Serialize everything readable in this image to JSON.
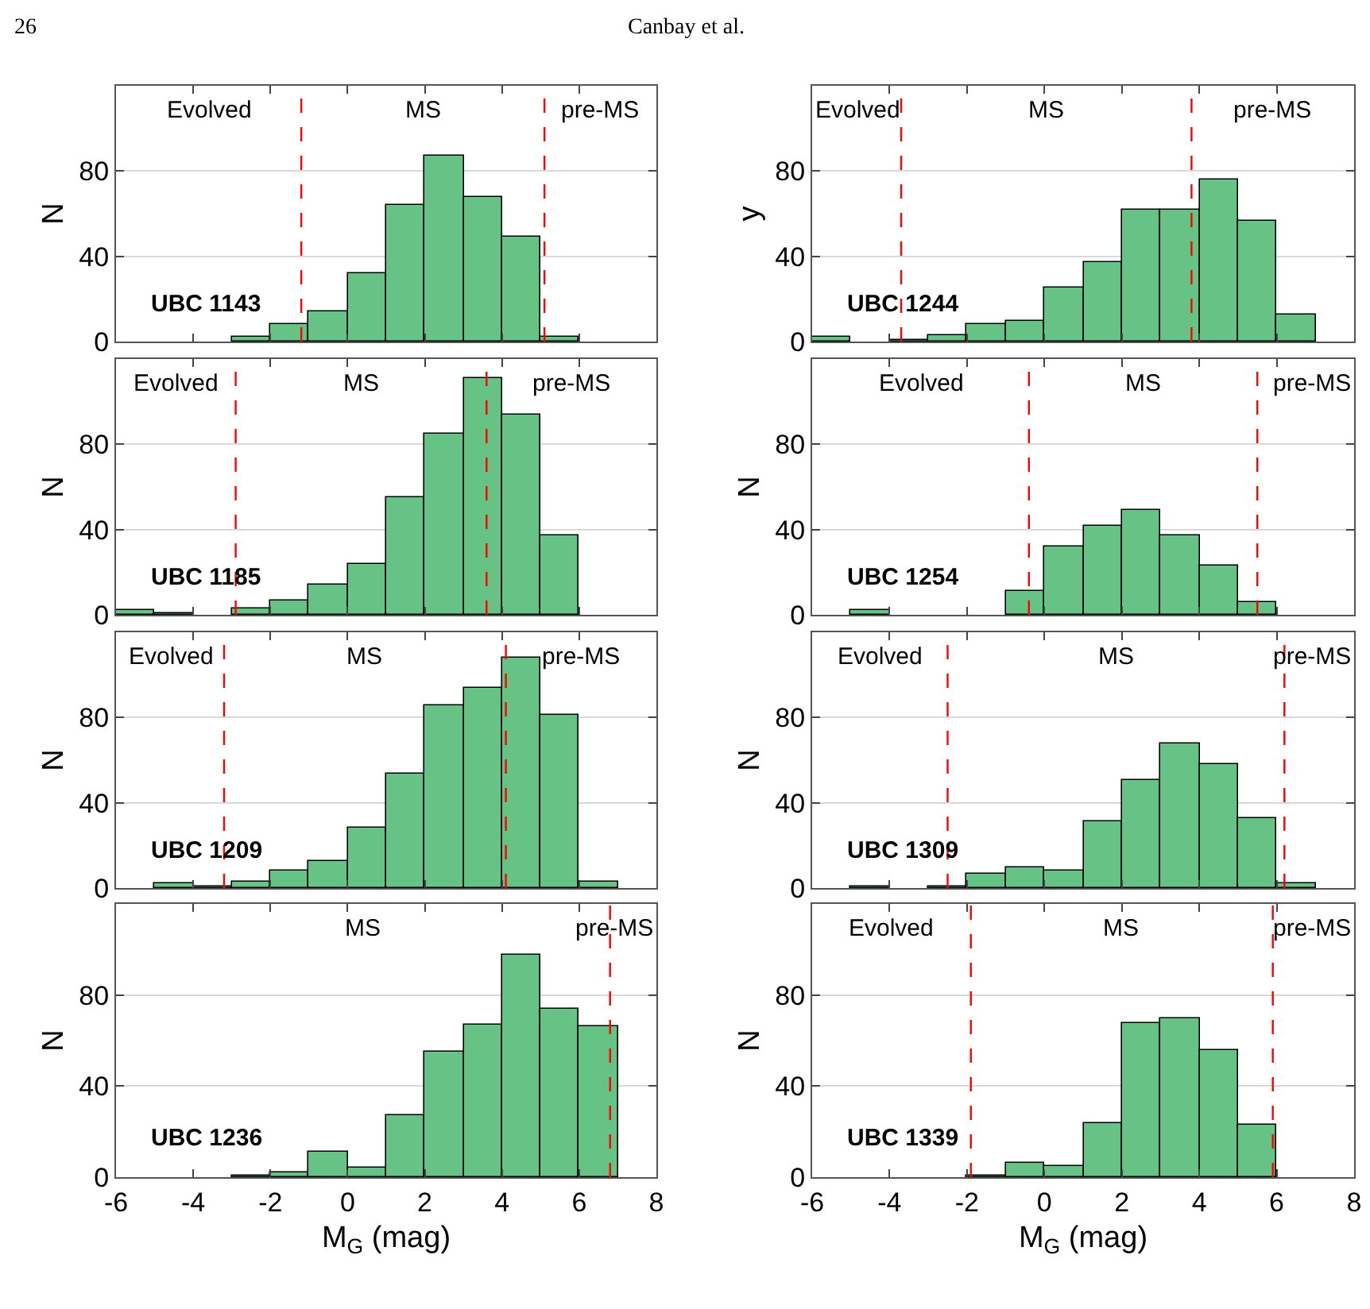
{
  "chart_data": [
    {
      "type": "histogram",
      "title": "UBC 1143",
      "ylabel": "N",
      "bins": [
        -6,
        -5,
        -4,
        -3,
        -2,
        -1,
        0,
        1,
        2,
        3,
        4,
        5,
        6,
        7,
        8
      ],
      "values": [
        0,
        0,
        0,
        2,
        8,
        14,
        32,
        64,
        87,
        68,
        49,
        2,
        0,
        0
      ],
      "color": "#66c285",
      "xlim": [
        -6,
        8
      ],
      "xticks": [
        -6,
        -4,
        -2,
        0,
        2,
        4,
        6,
        8
      ],
      "ylim": [
        0,
        120
      ],
      "yticks": [
        0,
        40,
        80
      ],
      "grid": "y",
      "tick_labels": "y",
      "ref_lines": [
        {
          "axis": "x",
          "value": -1.2,
          "color": "#ff0000",
          "line_style": "dashed"
        },
        {
          "axis": "x",
          "value": 5.1,
          "color": "#ff0000",
          "line_style": "dashed"
        }
      ],
      "annotations": [
        "Evolved",
        "MS",
        "pre-MS"
      ]
    },
    {
      "type": "histogram",
      "title": "UBC 1244",
      "ylabel": "y",
      "bins": [
        -6,
        -5,
        -4,
        -3,
        -2,
        -1,
        0,
        1,
        2,
        3,
        4,
        5,
        6,
        7,
        8
      ],
      "values": [
        2,
        0,
        1,
        3,
        8,
        10,
        25,
        37,
        62,
        62,
        76,
        57,
        13,
        0
      ],
      "color": "#66c285",
      "xlim": [
        -6,
        8
      ],
      "xticks": [
        -6,
        -4,
        -2,
        0,
        2,
        4,
        6,
        8
      ],
      "ylim": [
        0,
        120
      ],
      "yticks": [
        0,
        40,
        80
      ],
      "grid": "y",
      "tick_labels": "y",
      "ref_lines": [
        {
          "axis": "x",
          "value": -3.7,
          "color": "#ff0000",
          "line_style": "dashed"
        },
        {
          "axis": "x",
          "value": 3.8,
          "color": "#ff0000",
          "line_style": "dashed"
        }
      ],
      "annotations": [
        "Evolved",
        "MS",
        "pre-MS"
      ]
    },
    {
      "type": "histogram",
      "title": "UBC 1185",
      "ylabel": "N",
      "bins": [
        -6,
        -5,
        -4,
        -3,
        -2,
        -1,
        0,
        1,
        2,
        3,
        4,
        5,
        6,
        7,
        8
      ],
      "values": [
        2,
        1,
        0,
        3,
        7,
        14,
        24,
        55,
        85,
        111,
        94,
        37,
        0,
        0
      ],
      "color": "#66c285",
      "xlim": [
        -6,
        8
      ],
      "xticks": [
        -6,
        -4,
        -2,
        0,
        2,
        4,
        6,
        8
      ],
      "ylim": [
        0,
        120
      ],
      "yticks": [
        0,
        40,
        80
      ],
      "grid": "y",
      "tick_labels": "y",
      "ref_lines": [
        {
          "axis": "x",
          "value": -2.9,
          "color": "#ff0000",
          "line_style": "dashed"
        },
        {
          "axis": "x",
          "value": 3.6,
          "color": "#ff0000",
          "line_style": "dashed"
        }
      ],
      "annotations": [
        "Evolved",
        "MS",
        "pre-MS"
      ]
    },
    {
      "type": "histogram",
      "title": "UBC 1254",
      "ylabel": "N",
      "bins": [
        -6,
        -5,
        -4,
        -3,
        -2,
        -1,
        0,
        1,
        2,
        3,
        4,
        5,
        6,
        7,
        8
      ],
      "values": [
        0,
        2,
        0,
        0,
        0,
        11,
        32,
        42,
        49,
        37,
        23,
        6,
        0,
        0
      ],
      "color": "#66c285",
      "xlim": [
        -6,
        8
      ],
      "xticks": [
        -6,
        -4,
        -2,
        0,
        2,
        4,
        6,
        8
      ],
      "ylim": [
        0,
        120
      ],
      "yticks": [
        0,
        40,
        80
      ],
      "grid": "y",
      "tick_labels": "y",
      "ref_lines": [
        {
          "axis": "x",
          "value": -0.4,
          "color": "#ff0000",
          "line_style": "dashed"
        },
        {
          "axis": "x",
          "value": 5.5,
          "color": "#ff0000",
          "line_style": "dashed"
        }
      ],
      "annotations": [
        "Evolved",
        "MS",
        "pre-MS"
      ]
    },
    {
      "type": "histogram",
      "title": "UBC 1209",
      "ylabel": "N",
      "bins": [
        -6,
        -5,
        -4,
        -3,
        -2,
        -1,
        0,
        1,
        2,
        3,
        4,
        5,
        6,
        7,
        8
      ],
      "values": [
        0,
        2,
        1,
        3,
        8,
        13,
        28,
        54,
        86,
        94,
        108,
        81,
        3,
        0
      ],
      "color": "#66c285",
      "xlim": [
        -6,
        8
      ],
      "xticks": [
        -6,
        -4,
        -2,
        0,
        2,
        4,
        6,
        8
      ],
      "ylim": [
        0,
        120
      ],
      "yticks": [
        0,
        40,
        80
      ],
      "grid": "y",
      "tick_labels": "y",
      "ref_lines": [
        {
          "axis": "x",
          "value": -3.2,
          "color": "#ff0000",
          "line_style": "dashed"
        },
        {
          "axis": "x",
          "value": 4.1,
          "color": "#ff0000",
          "line_style": "dashed"
        }
      ],
      "annotations": [
        "Evolved",
        "MS",
        "pre-MS"
      ]
    },
    {
      "type": "histogram",
      "title": "UBC 1309",
      "ylabel": "N",
      "bins": [
        -6,
        -5,
        -4,
        -3,
        -2,
        -1,
        0,
        1,
        2,
        3,
        4,
        5,
        6,
        7,
        8
      ],
      "values": [
        0,
        1,
        0,
        1,
        7,
        10,
        8,
        31,
        51,
        68,
        58,
        33,
        2,
        0
      ],
      "color": "#66c285",
      "xlim": [
        -6,
        8
      ],
      "xticks": [
        -6,
        -4,
        -2,
        0,
        2,
        4,
        6,
        8
      ],
      "ylim": [
        0,
        120
      ],
      "yticks": [
        0,
        40,
        80
      ],
      "grid": "y",
      "tick_labels": "y",
      "ref_lines": [
        {
          "axis": "x",
          "value": -2.5,
          "color": "#ff0000",
          "line_style": "dashed"
        },
        {
          "axis": "x",
          "value": 6.2,
          "color": "#ff0000",
          "line_style": "dashed"
        }
      ],
      "annotations": [
        "Evolved",
        "MS",
        "pre-MS"
      ]
    },
    {
      "type": "histogram",
      "title": "UBC 1236",
      "ylabel": "N",
      "xlabel": "M$_{G}$ (mag)",
      "bins": [
        -6,
        -5,
        -4,
        -3,
        -2,
        -1,
        0,
        1,
        2,
        3,
        4,
        5,
        6,
        7,
        8
      ],
      "values": [
        0,
        0,
        0,
        1,
        2,
        11,
        4,
        27,
        55,
        67,
        98,
        74,
        66,
        0
      ],
      "color": "#66c285",
      "xlim": [
        -6,
        8
      ],
      "xticks": [
        -6,
        -4,
        -2,
        0,
        2,
        4,
        6,
        8
      ],
      "ylim": [
        0,
        120
      ],
      "yticks": [
        0,
        40,
        80
      ],
      "grid": "y",
      "ref_lines": [
        {
          "axis": "x",
          "value": 6.8,
          "color": "#ff0000",
          "line_style": "dashed"
        }
      ],
      "annotations": [
        "MS",
        "pre-MS"
      ]
    },
    {
      "type": "histogram",
      "title": "UBC 1339",
      "ylabel": "N",
      "xlabel": "M$_{G}$ (mag)",
      "bins": [
        -6,
        -5,
        -4,
        -3,
        -2,
        -1,
        0,
        1,
        2,
        3,
        4,
        5,
        6,
        7,
        8
      ],
      "values": [
        0,
        0,
        0,
        0,
        1,
        6,
        5,
        24,
        68,
        70,
        56,
        23,
        0,
        0
      ],
      "color": "#66c285",
      "xlim": [
        -6,
        8
      ],
      "xticks": [
        -6,
        -4,
        -2,
        0,
        2,
        4,
        6,
        8
      ],
      "ylim": [
        0,
        120
      ],
      "yticks": [
        0,
        40,
        80
      ],
      "grid": "y",
      "ref_lines": [
        {
          "axis": "x",
          "value": -1.9,
          "color": "#ff0000",
          "line_style": "dashed"
        },
        {
          "axis": "x",
          "value": 5.9,
          "color": "#ff0000",
          "line_style": "dashed"
        }
      ],
      "annotations": [
        "Evolved",
        "MS",
        "pre-MS"
      ]
    },
    {
      "type": "other",
      "annotations": [
        "26",
        "Canbay et al."
      ]
    }
  ]
}
